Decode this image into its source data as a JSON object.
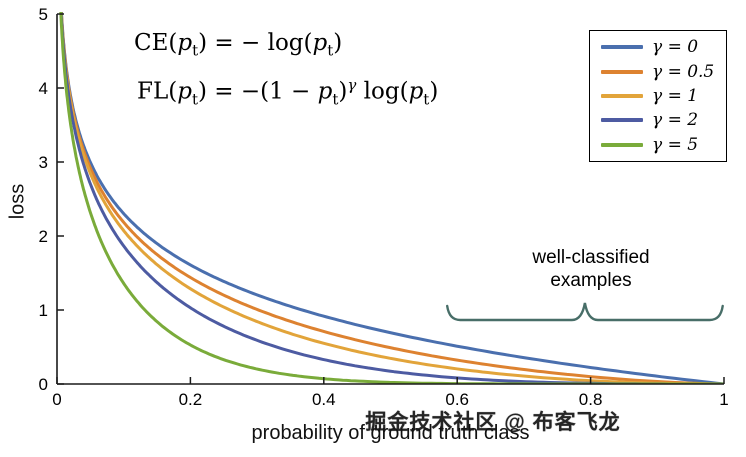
{
  "chart_data": {
    "type": "line",
    "title": "",
    "xlabel": "probability of ground truth class",
    "ylabel": "loss",
    "xlim": [
      0,
      1
    ],
    "ylim": [
      0,
      5
    ],
    "xticks": [
      0,
      0.2,
      0.4,
      0.6,
      0.8,
      1
    ],
    "yticks": [
      0,
      1,
      2,
      3,
      4,
      5
    ],
    "grid": false,
    "legend_position": "top-right",
    "function": "FL(pt) = -(1 - pt)^gamma * log(pt); gamma = 0 is cross entropy CE",
    "series": [
      {
        "name": "γ = 0",
        "gamma": 0,
        "color": "#4a6fae"
      },
      {
        "name": "γ = 0.5",
        "gamma": 0.5,
        "color": "#dd8230"
      },
      {
        "name": "γ = 1",
        "gamma": 1,
        "color": "#e2a43a"
      },
      {
        "name": "γ = 2",
        "gamma": 2,
        "color": "#4d5ba2"
      },
      {
        "name": "γ = 5",
        "gamma": 5,
        "color": "#7aab3a"
      }
    ],
    "sample_points": {
      "x": [
        0.05,
        0.1,
        0.2,
        0.4,
        0.6,
        0.8,
        1.0
      ],
      "series_y": [
        {
          "name": "γ = 0",
          "y": [
            3.0,
            2.3,
            1.61,
            0.92,
            0.51,
            0.22,
            0.0
          ]
        },
        {
          "name": "γ = 0.5",
          "y": [
            2.92,
            2.18,
            1.44,
            0.71,
            0.32,
            0.1,
            0.0
          ]
        },
        {
          "name": "γ = 1",
          "y": [
            2.85,
            2.07,
            1.29,
            0.55,
            0.2,
            0.045,
            0.0
          ]
        },
        {
          "name": "γ = 2",
          "y": [
            2.7,
            1.86,
            1.03,
            0.33,
            0.082,
            0.009,
            0.0
          ]
        },
        {
          "name": "γ = 5",
          "y": [
            2.32,
            1.36,
            0.53,
            0.071,
            0.005,
            0.0001,
            0.0
          ]
        }
      ]
    }
  },
  "annotations": {
    "formula_ce": "CE(*p*~t~) = − log(*p*~t~)",
    "formula_fl": "FL(*p*~t~) = −(1 − *p*~t~)^γ^ log(*p*~t~)",
    "brace_label_line1": "well-classified",
    "brace_label_line2": "examples",
    "brace_span_x": [
      0.585,
      0.998
    ],
    "brace_color": "#486e68"
  },
  "watermark": {
    "text": "掘金技术社区 @ 布客飞龙"
  }
}
